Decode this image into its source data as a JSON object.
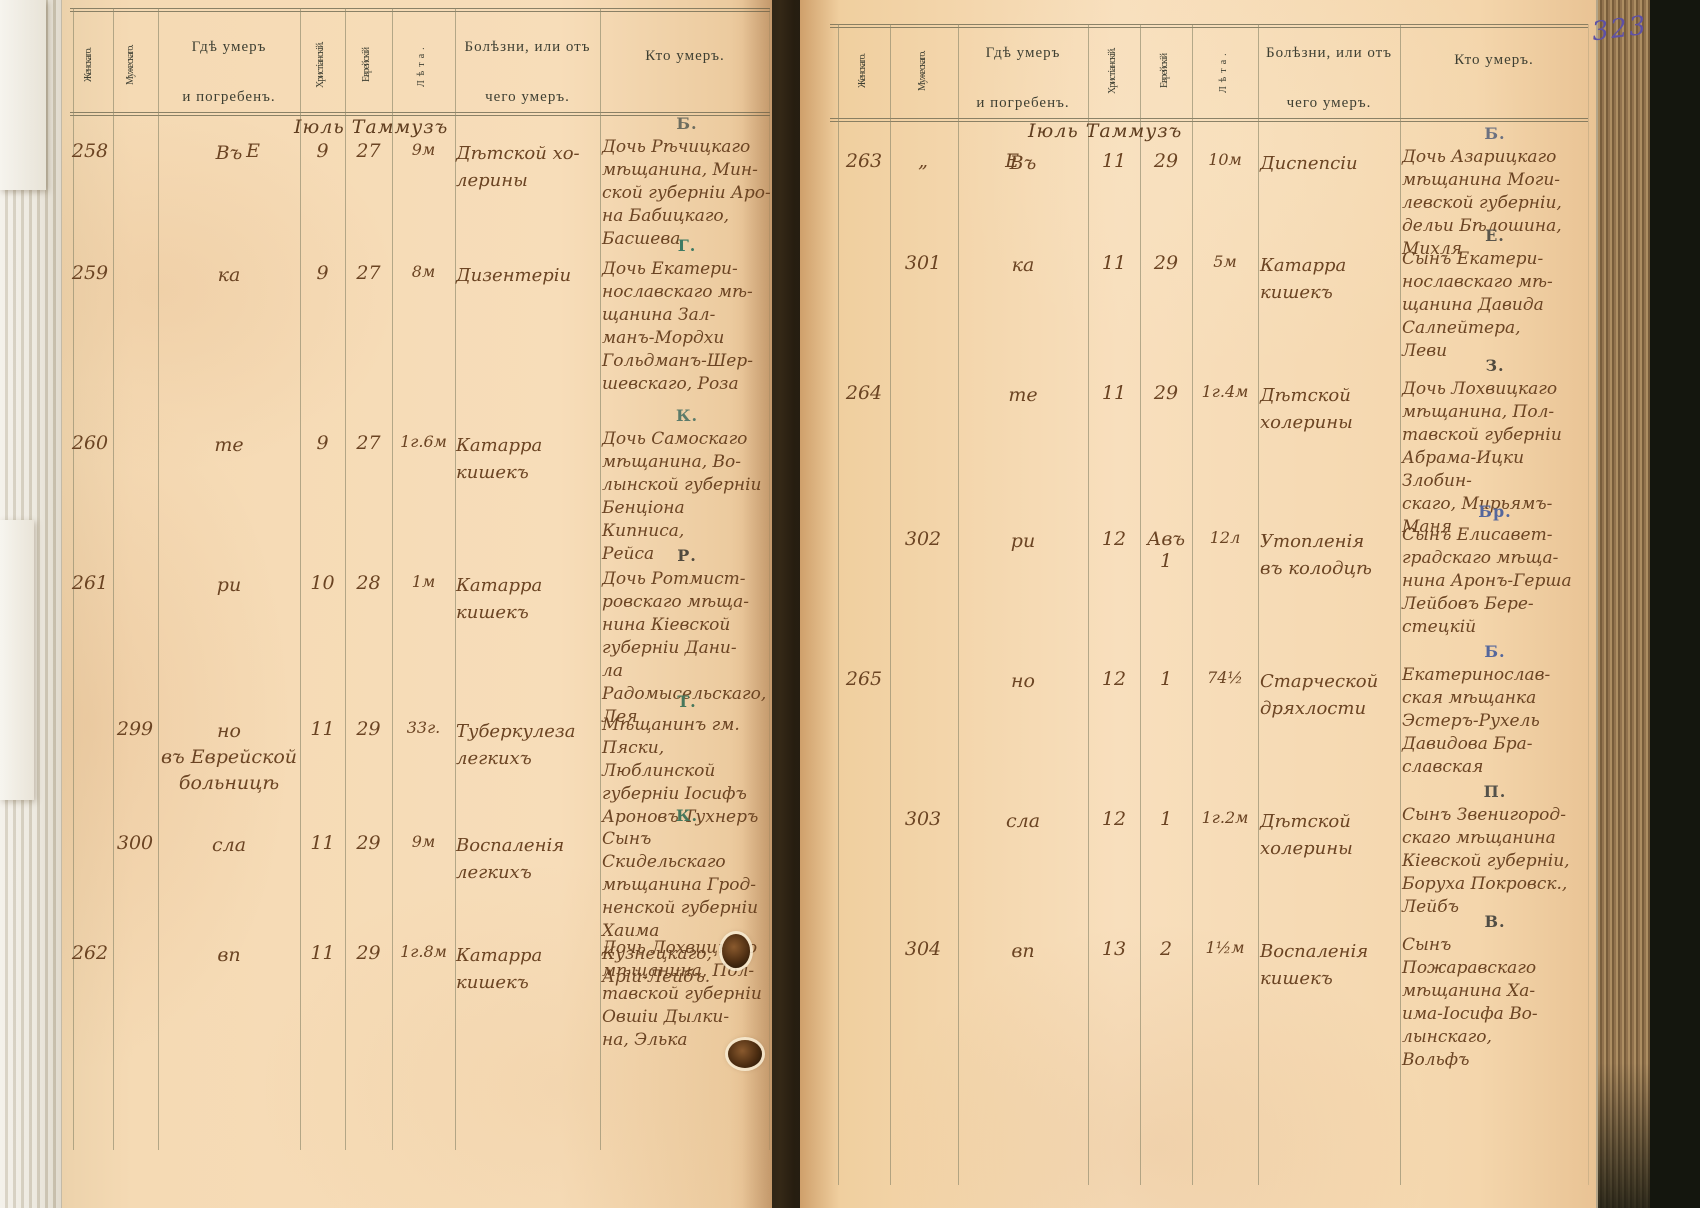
{
  "book": {
    "page_number": "323"
  },
  "headers": {
    "female": "Женскаго.",
    "male": "Мужескаго.",
    "where": "Гдѣ умеръ\nи погребенъ.",
    "christian": "Христіанскій.",
    "jewish": "Еврейскій",
    "years": "Лѣта.",
    "cause": "Болѣзни, или отъ\nчего умеръ.",
    "who": "Кто умеръ."
  },
  "left_page": {
    "month_header": "Іюль Таммузъ",
    "rows": [
      {
        "num_female": "258",
        "num_male": "",
        "place": "Въ",
        "place_mark": "Е",
        "date_christian": "9",
        "date_jewish": "27",
        "age": "9м",
        "cause": "Дѣтской хо-\nлерины",
        "letter": "Б.",
        "letter_color": "#6d6d5f",
        "who": "Дочь Рѣчицкаго\nмѣщанина, Мин-\nской губерніи Аро-\nна Бабицкаго,\nБасшева"
      },
      {
        "num_female": "259",
        "num_male": "",
        "place": "ка",
        "place_mark": "",
        "date_christian": "9",
        "date_jewish": "27",
        "age": "8м",
        "cause": "Дизентеріи",
        "letter": "Г.",
        "letter_color": "#3e7a63",
        "who": "Дочь Екатери-\nнославскаго мѣ-\nщанина Зал-\nманъ-Мордхи\nГольдманъ-Шер-\nшевскаго, Роза"
      },
      {
        "num_female": "260",
        "num_male": "",
        "place": "те",
        "place_mark": "",
        "date_christian": "9",
        "date_jewish": "27",
        "age": "1г.6м",
        "cause": "Катарра\nкишекъ",
        "letter": "К.",
        "letter_color": "#5c7b6a",
        "who": "Дочь Самоскаго\nмѣщанина, Во-\nлынской губерніи\nБенціона Кипниса,\nРейса"
      },
      {
        "num_female": "261",
        "num_male": "",
        "place": "ри",
        "place_mark": "",
        "date_christian": "10",
        "date_jewish": "28",
        "age": "1м",
        "cause": "Катарра\nкишекъ",
        "letter": "Р.",
        "letter_color": "#514a3e",
        "who": "Дочь Ротмист-\nровскаго мѣща-\nнина Кіевской\nгуберніи Дани-\nла Радомысельскаго,\nЛея"
      },
      {
        "num_female": "",
        "num_male": "299",
        "place": "но\nвъ Еврейской\nбольницѣ",
        "place_mark": "",
        "date_christian": "11",
        "date_jewish": "29",
        "age": "33г.",
        "cause": "Туберкулеза\nлегкихъ",
        "letter": "Т.",
        "letter_color": "#47775c",
        "who": "Мѣщанинъ гм.\nПяски, Люблинской\nгуберніи Іосифъ\nАроновъ Тухнеръ"
      },
      {
        "num_female": "",
        "num_male": "300",
        "place": "сла",
        "place_mark": "",
        "date_christian": "11",
        "date_jewish": "29",
        "age": "9м",
        "cause": "Воспаленія\nлегкихъ",
        "letter": "К.",
        "letter_color": "#47775c",
        "who": "Сынъ Скидельскаго\nмѣщанина Грод-\nненской губерніи\nХаима Кузнецкаго,\nАрій-Лейбъ."
      },
      {
        "num_female": "262",
        "num_male": "",
        "place": "вп",
        "place_mark": "",
        "date_christian": "11",
        "date_jewish": "29",
        "age": "1г.8м",
        "cause": "Катарра\nкишекъ",
        "letter": "",
        "letter_color": "",
        "who": "Дочь Лохвицкаго\nмѣщанина, Пол-\nтавской губерніи\nОвшіи Дылки-\nна, Элька"
      }
    ]
  },
  "right_page": {
    "month_header": "Іюль Таммузъ",
    "rows": [
      {
        "num_female": "263",
        "num_male": "„",
        "place": "Въ",
        "place_mark": "Е",
        "date_christian": "11",
        "date_jewish": "29",
        "age": "10м",
        "cause": "Диспепсіи",
        "letter": "Б.",
        "letter_color": "#6c7180",
        "who": "Дочь Азарицкаго\nмѣщанина Моги-\nлевской губерніи,\nдельи Бѣлошина,\nМихля"
      },
      {
        "num_female": "",
        "num_male": "301",
        "place": "ка",
        "place_mark": "",
        "date_christian": "11",
        "date_jewish": "29",
        "age": "5м",
        "cause": "Катарра\nкишекъ",
        "letter": "Е.",
        "letter_color": "#5a564c",
        "who": "Сынъ Екатери-\nнославскаго мѣ-\nщанина Давида\nСалпейтера,\nЛеви"
      },
      {
        "num_female": "264",
        "num_male": "",
        "place": "те",
        "place_mark": "",
        "date_christian": "11",
        "date_jewish": "29",
        "age": "1г.4м",
        "cause": "Дѣтской\nхолерины",
        "letter": "З.",
        "letter_color": "#514a3e",
        "who": "Дочь Лохвицкаго\nмѣщанина, Пол-\nтавской губерніи\nАбрама-Ицки Злобин-\nскаго, Мирьямъ-\nМаня"
      },
      {
        "num_female": "",
        "num_male": "302",
        "place": "ри",
        "place_mark": "",
        "date_christian": "12",
        "date_jewish": "Авъ\n1",
        "age": "12л",
        "cause": "Утопленія\nвъ колодцѣ",
        "letter": "Бр.",
        "letter_color": "#55679c",
        "who": "Сынъ Елисавет-\nградскаго мѣща-\nнина Аронъ-Герша\nЛейбовъ Бере-\nстецкій"
      },
      {
        "num_female": "265",
        "num_male": "",
        "place": "но",
        "place_mark": "",
        "date_christian": "12",
        "date_jewish": "1",
        "age": "74½",
        "cause": "Старческой\nдряхлости",
        "letter": "Б.",
        "letter_color": "#55679c",
        "who": "Екатеринослав-\nская мѣщанка\nЭстеръ-Рухель\nДавидова Бра-\nславская"
      },
      {
        "num_female": "",
        "num_male": "303",
        "place": "сла",
        "place_mark": "",
        "date_christian": "12",
        "date_jewish": "1",
        "age": "1г.2м",
        "cause": "Дѣтской\nхолерины",
        "letter": "П.",
        "letter_color": "#55524a",
        "who": "Сынъ Звенигород-\nскаго мѣщанина\nКіевской губерніи,\nБоруха Покровск.,\nЛейбъ"
      },
      {
        "num_female": "",
        "num_male": "304",
        "place": "вп",
        "place_mark": "",
        "date_christian": "13",
        "date_jewish": "2",
        "age": "1½м",
        "cause": "Воспаленія\nкишекъ",
        "letter": "В.",
        "letter_color": "#514d44",
        "who": "Сынъ Пожаравскаго\nмѣщанина Ха-\nима-Іосифа Во-\nлынскаго,\nВольфъ"
      }
    ]
  }
}
